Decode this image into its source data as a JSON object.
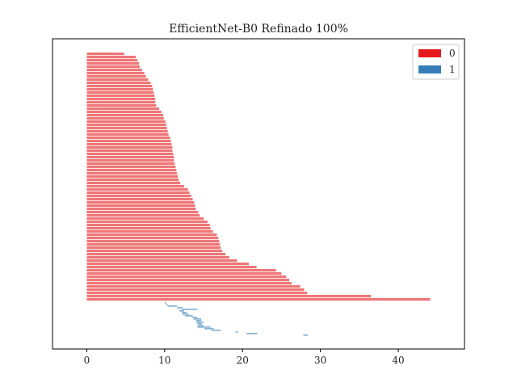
{
  "chart_data": {
    "type": "bar",
    "orientation": "horizontal",
    "title": "EfficientNet-B0 Refinado 100%",
    "xlabel": "",
    "ylabel": "",
    "xlim": [
      -4.4,
      48.5
    ],
    "xticks": [
      0,
      10,
      20,
      30,
      40
    ],
    "grid": false,
    "legend_position": "top-right",
    "legend": [
      {
        "label": "0",
        "color": "#e41a1c"
      },
      {
        "label": "1",
        "color": "#377eb8"
      }
    ],
    "series": [
      {
        "name": "0",
        "color": "#e41a1c",
        "start": 0,
        "values": [
          4.8,
          6.3,
          6.5,
          6.7,
          6.8,
          7.1,
          7.4,
          7.6,
          7.9,
          8.2,
          8.4,
          8.5,
          8.6,
          8.7,
          8.8,
          8.8,
          8.9,
          9.3,
          9.6,
          9.8,
          9.9,
          10.1,
          10.2,
          10.3,
          10.4,
          10.5,
          10.7,
          10.8,
          10.9,
          11.0,
          11.0,
          11.1,
          11.2,
          11.2,
          11.3,
          11.4,
          11.5,
          11.6,
          11.7,
          11.8,
          12.0,
          12.5,
          13.0,
          13.2,
          13.4,
          13.6,
          13.8,
          13.9,
          14.0,
          14.3,
          14.5,
          15.0,
          15.5,
          15.8,
          15.9,
          16.2,
          16.7,
          16.9,
          17.0,
          17.1,
          17.2,
          17.4,
          17.8,
          18.3,
          19.3,
          20.8,
          21.8,
          24.3,
          25.0,
          25.6,
          26.0,
          26.3,
          27.4,
          27.9,
          28.3,
          36.5,
          44.1
        ]
      },
      {
        "name": "1",
        "color": "#377eb8",
        "segments": [
          [
            10.0,
            0.2
          ],
          [
            10.2,
            0.2
          ],
          [
            10.4,
            1.2
          ],
          [
            11.6,
            0.7
          ],
          [
            12.2,
            2.0
          ],
          [
            11.9,
            0.6
          ],
          [
            12.2,
            0.6
          ],
          [
            12.3,
            0.8
          ],
          [
            12.6,
            1.0
          ],
          [
            13.5,
            0.7
          ],
          [
            13.7,
            1.0
          ],
          [
            14.0,
            0.7
          ],
          [
            14.1,
            0.9
          ],
          [
            14.2,
            0.6
          ],
          [
            14.3,
            0.7
          ],
          [
            14.2,
            1.7
          ],
          [
            15.1,
            1.2
          ],
          [
            16.0,
            1.2
          ],
          [
            19.1,
            0.3
          ],
          [
            20.5,
            1.4
          ],
          [
            27.8,
            0.6
          ]
        ]
      }
    ]
  }
}
